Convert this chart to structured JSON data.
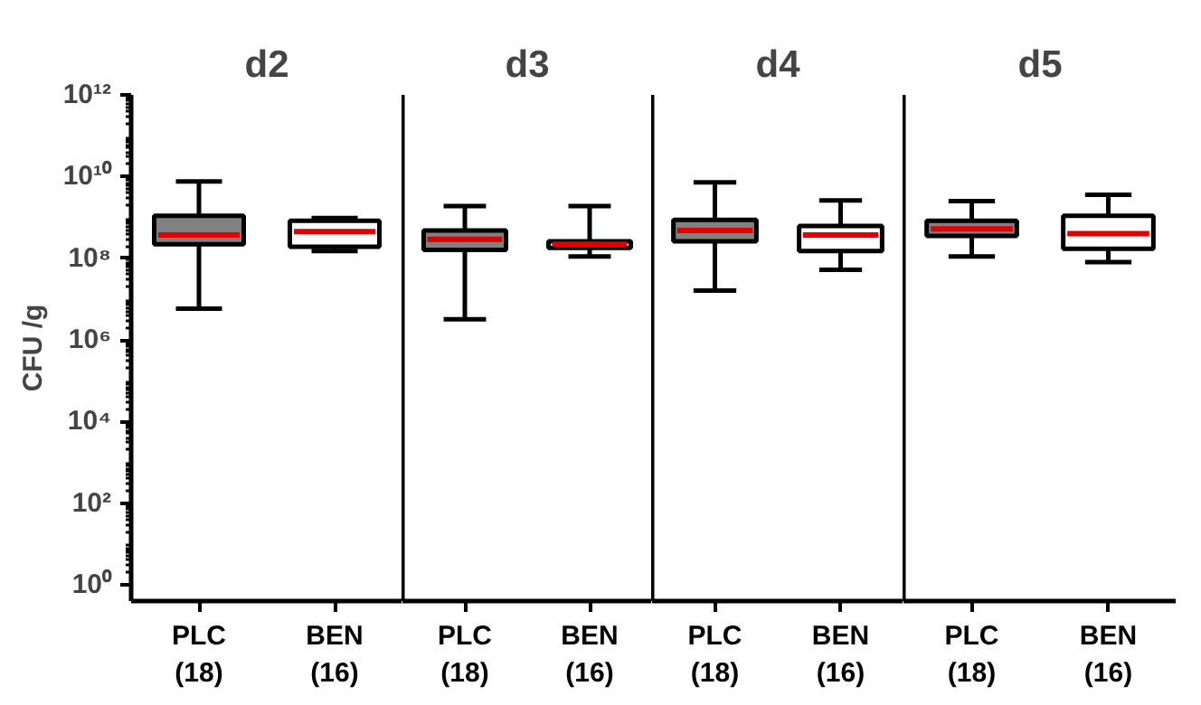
{
  "chart_data": [
    {
      "type": "box",
      "title": "d2",
      "ylabel": "CFU /g",
      "categories": [
        "PLC\n(18)",
        "BEN\n(16)"
      ],
      "colors": [
        "#808080",
        "#ffffff"
      ],
      "ylim": [
        0.4,
        1000000000000.0
      ],
      "log": "y",
      "grid": false,
      "yticks": [
        {
          "value": 1,
          "label": "10⁰"
        },
        {
          "value": 100,
          "label": "10²"
        },
        {
          "value": 10000,
          "label": "10⁴"
        },
        {
          "value": 1000000,
          "label": "10⁶"
        },
        {
          "value": 100000000,
          "label": "10⁸"
        },
        {
          "value": 10000000000,
          "label": "10¹⁰"
        },
        {
          "value": 1000000000000,
          "label": "10¹²"
        }
      ],
      "boxes": [
        {
          "low": 5800000.0,
          "q1": 220000000.0,
          "median": 370000000.0,
          "q3": 1100000000.0,
          "high": 7600000000.0
        },
        {
          "low": 150000000.0,
          "q1": 190000000.0,
          "median": 450000000.0,
          "q3": 830000000.0,
          "high": 960000000.0
        }
      ]
    },
    {
      "type": "box",
      "title": "d3",
      "categories": [
        "PLC\n(18)",
        "BEN\n(16)"
      ],
      "colors": [
        "#808080",
        "#ffffff"
      ],
      "ylim": [
        0.4,
        1000000000000.0
      ],
      "log": "y",
      "grid": false,
      "tick_labels": "x",
      "boxes": [
        {
          "low": 3200000.0,
          "q1": 160000000.0,
          "median": 290000000.0,
          "q3": 480000000.0,
          "high": 1900000000.0
        },
        {
          "low": 110000000.0,
          "q1": 180000000.0,
          "median": 220000000.0,
          "q3": 260000000.0,
          "high": 1900000000.0
        }
      ]
    },
    {
      "type": "box",
      "title": "d4",
      "categories": [
        "PLC\n(18)",
        "BEN\n(16)"
      ],
      "colors": [
        "#808080",
        "#ffffff"
      ],
      "ylim": [
        0.4,
        1000000000000.0
      ],
      "log": "y",
      "grid": false,
      "tick_labels": "x",
      "boxes": [
        {
          "low": 16000000.0,
          "q1": 260000000.0,
          "median": 480000000.0,
          "q3": 870000000.0,
          "high": 7200000000.0
        },
        {
          "low": 52000000.0,
          "q1": 150000000.0,
          "median": 370000000.0,
          "q3": 620000000.0,
          "high": 2600000000.0
        }
      ]
    },
    {
      "type": "box",
      "title": "d5",
      "categories": [
        "PLC\n(18)",
        "BEN\n(16)"
      ],
      "colors": [
        "#808080",
        "#ffffff"
      ],
      "ylim": [
        0.4,
        1000000000000.0
      ],
      "log": "y",
      "grid": false,
      "tick_labels": "x",
      "boxes": [
        {
          "low": 110000000.0,
          "q1": 350000000.0,
          "median": 520000000.0,
          "q3": 830000000.0,
          "high": 2500000000.0
        },
        {
          "low": 80000000.0,
          "q1": 170000000.0,
          "median": 400000000.0,
          "q3": 1100000000.0,
          "high": 3600000000.0
        }
      ]
    }
  ]
}
